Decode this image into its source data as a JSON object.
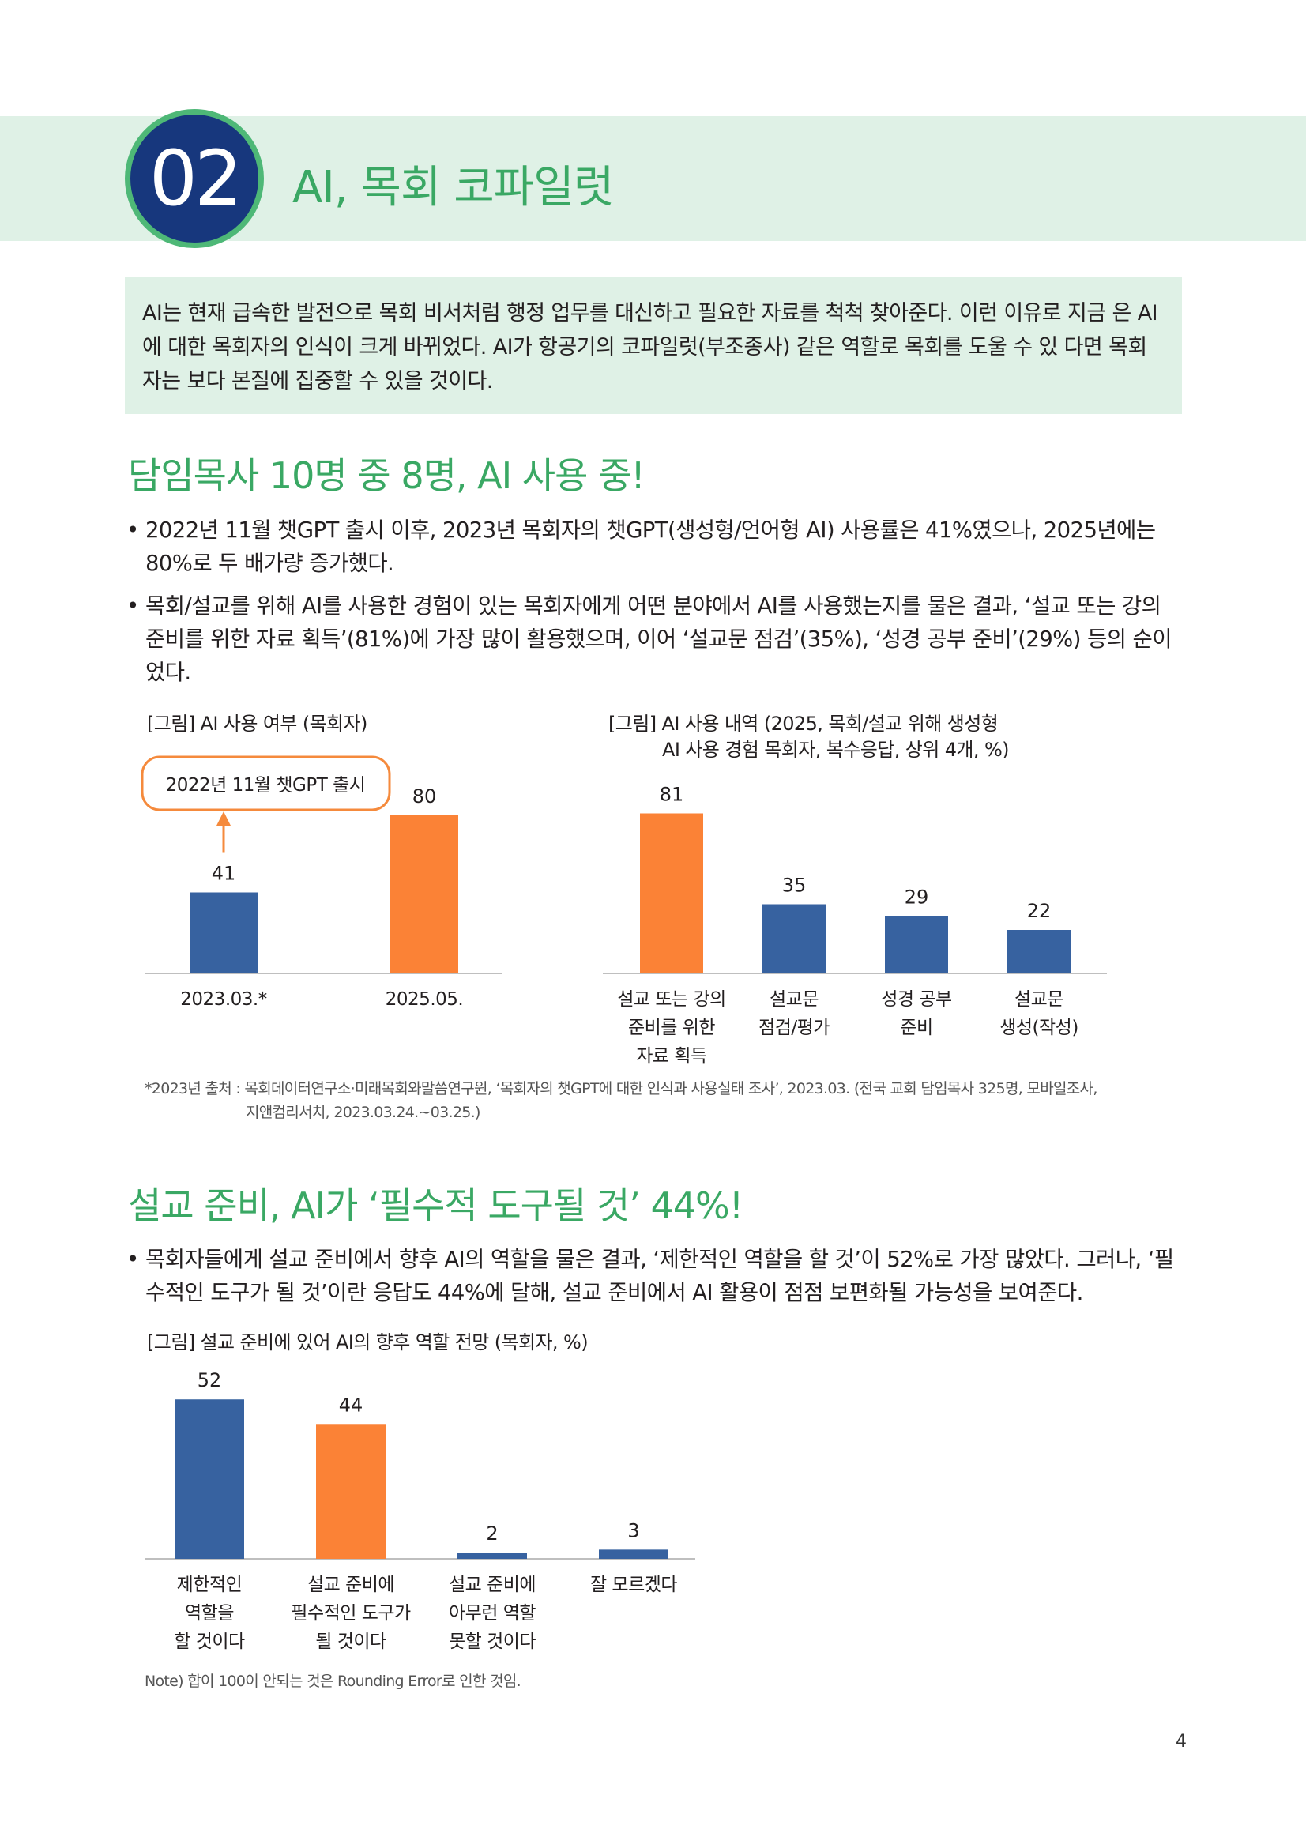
{
  "section": {
    "number": "02",
    "title": "AI, 목회 코파일럿"
  },
  "summary": "AI는 현재 급속한 발전으로 목회 비서처럼 행정 업무를 대신하고 필요한 자료를 척척 찾아준다. 이런 이유로 지금 은 AI에 대한 목회자의 인식이 크게 바뀌었다. AI가 항공기의 코파일럿(부조종사) 같은 역할로 목회를 도울 수 있 다면 목회자는 보다 본질에 집중할 수 있을 것이다.",
  "part1": {
    "heading": "담임목사 10명 중 8명, AI 사용 중!",
    "bullets": [
      "2022년 11월 챗GPT 출시 이후, 2023년 목회자의 챗GPT(생성형/언어형 AI) 사용률은 41%였으나, 2025년에는 80%로 두 배가량 증가했다.",
      "목회/설교를 위해 AI를 사용한 경험이 있는 목회자에게 어떤 분야에서 AI를 사용했는지를 물은 결과, ‘설교 또는 강의 준비를 위한 자료 획득’(81%)에 가장 많이 활용했으며, 이어 ‘설교문 점검’(35%), ‘성경 공부 준비’(29%) 등의 순이었다."
    ]
  },
  "part2": {
    "heading": "설교 준비, AI가 ‘필수적 도구될 것’ 44%!",
    "bullets": [
      "목회자들에게 설교 준비에서 향후 AI의 역할을 물은 결과, ‘제한적인 역할을 할 것’이 52%로 가장 많았다. 그러나, ‘필수적인 도구가 될 것’이란 응답도 44%에 달해, 설교 준비에서 AI 활용이 점점 보편화될 가능성을 보여준다."
    ]
  },
  "chart_data": [
    {
      "type": "bar",
      "title": "[그림] AI 사용 여부 (목회자)",
      "categories": [
        "2023.03.*",
        "2025.05."
      ],
      "values": [
        41,
        80
      ],
      "colors": [
        "#3762a0",
        "#fb8236"
      ],
      "ylim": [
        0,
        100
      ],
      "annotation": "2022년 11월 챗GPT 출시"
    },
    {
      "type": "bar",
      "title_lines": [
        "[그림] AI 사용 내역 (2025, 목회/설교 위해 생성형",
        "AI 사용 경험 목회자, 복수응답, 상위 4개, %)"
      ],
      "categories": [
        [
          "설교 또는 강의",
          "준비를 위한",
          "자료 획득"
        ],
        [
          "설교문",
          "점검/평가"
        ],
        [
          "성경 공부",
          "준비"
        ],
        [
          "설교문",
          "생성(작성)"
        ]
      ],
      "values": [
        81,
        35,
        29,
        22
      ],
      "colors": [
        "#fb8236",
        "#3762a0",
        "#3762a0",
        "#3762a0"
      ],
      "ylim": [
        0,
        100
      ]
    },
    {
      "type": "bar",
      "title": "[그림] 설교 준비에 있어 AI의 향후 역할 전망 (목회자, %)",
      "categories": [
        [
          "제한적인",
          "역할을",
          "할 것이다"
        ],
        [
          "설교 준비에",
          "필수적인 도구가",
          "될 것이다"
        ],
        [
          "설교 준비에",
          "아무런 역할",
          "못할 것이다"
        ],
        [
          "잘 모르겠다"
        ]
      ],
      "values": [
        52,
        44,
        2,
        3
      ],
      "colors": [
        "#3762a0",
        "#fb8236",
        "#3762a0",
        "#3762a0"
      ],
      "ylim": [
        0,
        100
      ]
    }
  ],
  "source": {
    "line1": "*2023년 출처 : 목회데이터연구소·미래목회와말씀연구원, ‘목회자의 챗GPT에 대한 인식과 사용실태 조사’, 2023.03. (전국 교회 담임목사 325명, 모바일조사,",
    "line2": "지앤컴리서치, 2023.03.24.~03.25.)"
  },
  "note": "Note) 합이 100이 안되는 것은 Rounding Error로 인한 것임.",
  "page_number": "4",
  "colors": {
    "green_band": "#dff1e6",
    "heading_green": "#3aa864",
    "navy": "#17377d",
    "bar_blue": "#3762a0",
    "bar_orange": "#fb8236"
  }
}
